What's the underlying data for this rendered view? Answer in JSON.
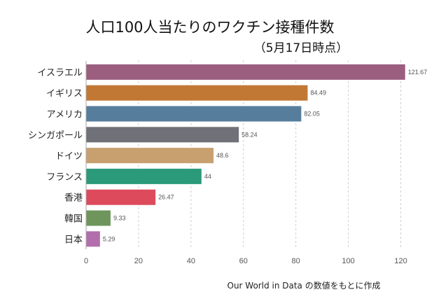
{
  "chart_data": {
    "type": "bar",
    "orientation": "horizontal",
    "title": "人口100人当たりのワクチン接種件数",
    "subtitle": "（5月17日時点）",
    "categories": [
      "イスラエル",
      "イギリス",
      "アメリカ",
      "シンガポール",
      "ドイツ",
      "フランス",
      "香港",
      "韓国",
      "日本"
    ],
    "values": [
      121.67,
      84.49,
      82.05,
      58.24,
      48.6,
      44,
      26.47,
      9.33,
      5.29
    ],
    "value_labels": [
      "121.67",
      "84.49",
      "82.05",
      "58.24",
      "48.6",
      "44",
      "26.47",
      "9.33",
      "5.29"
    ],
    "colors": [
      "#9b5e7e",
      "#c27835",
      "#567d9c",
      "#707078",
      "#c8a070",
      "#2a9a7a",
      "#dc4a5c",
      "#6e965c",
      "#b26eac"
    ],
    "xlim": [
      0,
      122
    ],
    "xticks": [
      0,
      20,
      40,
      60,
      80,
      100,
      120
    ],
    "grid": true,
    "source": "Our World in Data の数値をもとに作成"
  }
}
